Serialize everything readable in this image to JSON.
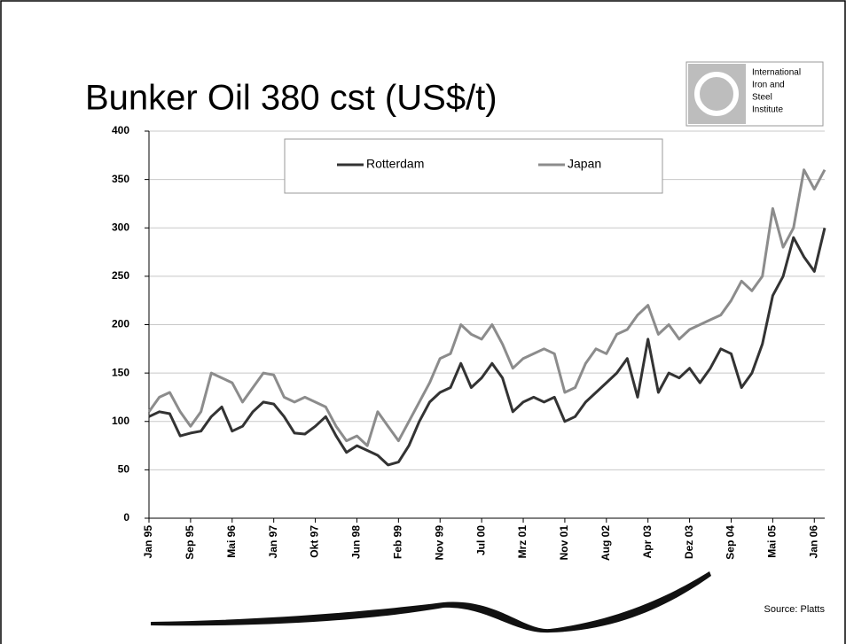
{
  "chart_data": {
    "type": "line",
    "title": "Bunker Oil  380 cst  (US$/t)",
    "categories": [
      "Jan 95",
      null,
      null,
      null,
      "Sep 95",
      null,
      null,
      null,
      "Mai 96",
      null,
      null,
      null,
      "Jan 97",
      null,
      null,
      null,
      "Okt 97",
      null,
      null,
      null,
      "Jun 98",
      null,
      null,
      null,
      "Feb 99",
      null,
      null,
      null,
      "Nov 99",
      null,
      null,
      null,
      "Jul 00",
      null,
      null,
      null,
      "Mrz 01",
      null,
      null,
      null,
      "Nov 01",
      null,
      null,
      null,
      "Aug 02",
      null,
      null,
      null,
      "Apr 03",
      null,
      null,
      null,
      "Dez 03",
      null,
      null,
      null,
      "Sep 04",
      null,
      null,
      null,
      "Mai 05",
      null,
      null,
      null,
      "Jan 06",
      null
    ],
    "series": [
      {
        "name": "Rotterdam",
        "color": "#333333",
        "values": [
          105,
          110,
          108,
          85,
          88,
          90,
          105,
          115,
          90,
          95,
          110,
          120,
          118,
          105,
          88,
          87,
          95,
          105,
          85,
          68,
          75,
          70,
          65,
          55,
          58,
          75,
          100,
          120,
          130,
          135,
          160,
          135,
          145,
          160,
          145,
          110,
          120,
          125,
          120,
          125,
          100,
          105,
          120,
          130,
          140,
          150,
          165,
          125,
          185,
          130,
          150,
          145,
          155,
          140,
          155,
          175,
          170,
          135,
          150,
          180,
          230,
          250,
          290,
          270,
          255,
          300
        ]
      },
      {
        "name": "Japan",
        "color": "#8c8c8c",
        "values": [
          110,
          125,
          130,
          110,
          95,
          110,
          150,
          145,
          140,
          120,
          135,
          150,
          148,
          125,
          120,
          125,
          120,
          115,
          95,
          80,
          85,
          75,
          110,
          95,
          80,
          100,
          120,
          140,
          165,
          170,
          200,
          190,
          185,
          200,
          180,
          155,
          165,
          170,
          175,
          170,
          130,
          135,
          160,
          175,
          170,
          190,
          195,
          210,
          220,
          190,
          200,
          185,
          195,
          200,
          205,
          210,
          225,
          245,
          235,
          250,
          320,
          280,
          300,
          360,
          340,
          360
        ]
      }
    ],
    "ylim": [
      0,
      400
    ],
    "yticks": [
      0,
      50,
      100,
      150,
      200,
      250,
      300,
      350,
      400
    ],
    "grid": true,
    "legend": "top",
    "source": "Source: Platts"
  },
  "logo": {
    "lines": [
      "International",
      "Iron and",
      "Steel",
      "Institute"
    ]
  }
}
